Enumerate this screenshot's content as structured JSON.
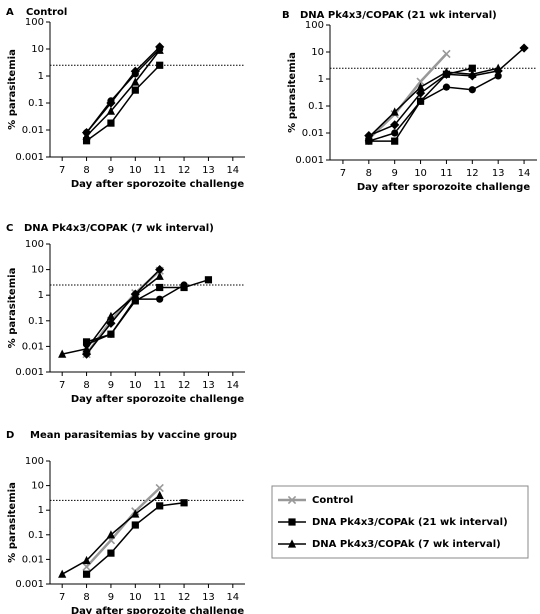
{
  "chart_data": [
    {
      "type": "line",
      "panel": "A",
      "title": "Control",
      "x_label": "Day after sporozoite challenge",
      "y_label": "% parasitemia",
      "log_y": true,
      "xlim": [
        6.5,
        14.5
      ],
      "ylim": [
        0.001,
        100
      ],
      "xticks": [
        7,
        8,
        9,
        10,
        11,
        12,
        13,
        14
      ],
      "yticks": [
        0.001,
        0.01,
        0.1,
        1,
        10,
        100
      ],
      "threshold": 2.5,
      "x": [
        7,
        8,
        9,
        10,
        11,
        12,
        13,
        14
      ],
      "series": [
        {
          "color": "#000000",
          "marker": "diamond",
          "values": [
            null,
            0.008,
            0.1,
            1.5,
            12,
            null,
            null,
            null
          ]
        },
        {
          "color": "#000000",
          "marker": "square",
          "values": [
            null,
            0.004,
            0.018,
            0.3,
            2.5,
            null,
            null,
            null
          ]
        },
        {
          "color": "#000000",
          "marker": "triangle",
          "values": [
            null,
            0.006,
            0.05,
            0.6,
            9,
            null,
            null,
            null
          ]
        },
        {
          "color": "#000000",
          "marker": "circle",
          "values": [
            null,
            0.008,
            0.12,
            1.2,
            10,
            null,
            null,
            null
          ]
        }
      ]
    },
    {
      "type": "line",
      "panel": "B",
      "title": "DNA Pk4x3/COPAK (21 wk interval)",
      "x_label": "Day after sporozoite challenge",
      "y_label": "% parasitemia",
      "log_y": true,
      "xlim": [
        6.5,
        14.5
      ],
      "ylim": [
        0.001,
        100
      ],
      "xticks": [
        7,
        8,
        9,
        10,
        11,
        12,
        13,
        14
      ],
      "yticks": [
        0.001,
        0.01,
        0.1,
        1,
        10,
        100
      ],
      "threshold": 2.5,
      "x": [
        7,
        8,
        9,
        10,
        11,
        12,
        13,
        14
      ],
      "series": [
        {
          "color": "#999999",
          "marker": "x",
          "values": [
            null,
            0.006,
            0.05,
            0.8,
            8.5,
            null,
            null,
            null
          ]
        },
        {
          "color": "#000000",
          "marker": "diamond",
          "values": [
            null,
            0.008,
            0.02,
            0.3,
            1.5,
            1.3,
            2,
            14
          ]
        },
        {
          "color": "#000000",
          "marker": "square",
          "values": [
            null,
            0.005,
            0.005,
            0.15,
            1.5,
            2.5,
            null,
            null
          ]
        },
        {
          "color": "#000000",
          "marker": "circle",
          "values": [
            null,
            0.005,
            0.01,
            0.15,
            0.5,
            0.4,
            1.3,
            null
          ]
        },
        {
          "color": "#000000",
          "marker": "triangle",
          "values": [
            null,
            0.007,
            0.06,
            0.5,
            1.8,
            1.5,
            2.5,
            null
          ]
        }
      ]
    },
    {
      "type": "line",
      "panel": "C",
      "title": "DNA Pk4x3/COPAK (7 wk interval)",
      "x_label": "Day after sporozoite challenge",
      "y_label": "% parasitemia",
      "log_y": true,
      "xlim": [
        6.5,
        14.5
      ],
      "ylim": [
        0.001,
        100
      ],
      "xticks": [
        7,
        8,
        9,
        10,
        11,
        12,
        13,
        14
      ],
      "yticks": [
        0.001,
        0.01,
        0.1,
        1,
        10,
        100
      ],
      "threshold": 2.5,
      "x": [
        7,
        8,
        9,
        10,
        11,
        12,
        13,
        14
      ],
      "series": [
        {
          "color": "#999999",
          "marker": "x",
          "values": [
            null,
            0.005,
            0.1,
            1.2,
            9,
            null,
            null,
            null
          ]
        },
        {
          "color": "#000000",
          "marker": "square",
          "values": [
            null,
            0.015,
            0.03,
            0.6,
            2,
            2,
            4,
            null
          ]
        },
        {
          "color": "#000000",
          "marker": "triangle",
          "values": [
            0.005,
            0.008,
            0.15,
            1,
            5.5,
            null,
            null,
            null
          ]
        },
        {
          "color": "#000000",
          "marker": "circle",
          "values": [
            null,
            0.012,
            0.03,
            0.7,
            0.7,
            2.5,
            null,
            null
          ]
        },
        {
          "color": "#000000",
          "marker": "diamond",
          "values": [
            null,
            0.005,
            0.08,
            1.1,
            10,
            null,
            null,
            null
          ]
        }
      ]
    },
    {
      "type": "line",
      "panel": "D",
      "title": "Mean parasitemias by vaccine group",
      "x_label": "Day after sporozoite challenge",
      "y_label": "% parasitemia",
      "log_y": true,
      "xlim": [
        6.5,
        14.5
      ],
      "ylim": [
        0.001,
        100
      ],
      "xticks": [
        7,
        8,
        9,
        10,
        11,
        12,
        13,
        14
      ],
      "yticks": [
        0.001,
        0.01,
        0.1,
        1,
        10,
        100
      ],
      "threshold": 2.5,
      "legend": "right",
      "x": [
        7,
        8,
        9,
        10,
        11,
        12,
        13,
        14
      ],
      "series": [
        {
          "name": "Control",
          "color": "#999999",
          "marker": "x",
          "values": [
            null,
            0.005,
            0.06,
            0.9,
            8,
            null,
            null,
            null
          ]
        },
        {
          "name": "DNA Pk4x3/COPAk (21 wk interval)",
          "color": "#000000",
          "marker": "square",
          "values": [
            null,
            0.0025,
            0.018,
            0.25,
            1.5,
            2,
            null,
            null
          ]
        },
        {
          "name": "DNA Pk4x3/COPAk (7 wk interval)",
          "color": "#000000",
          "marker": "triangle",
          "values": [
            0.0025,
            0.009,
            0.1,
            0.7,
            4,
            null,
            null,
            null
          ]
        }
      ]
    }
  ]
}
